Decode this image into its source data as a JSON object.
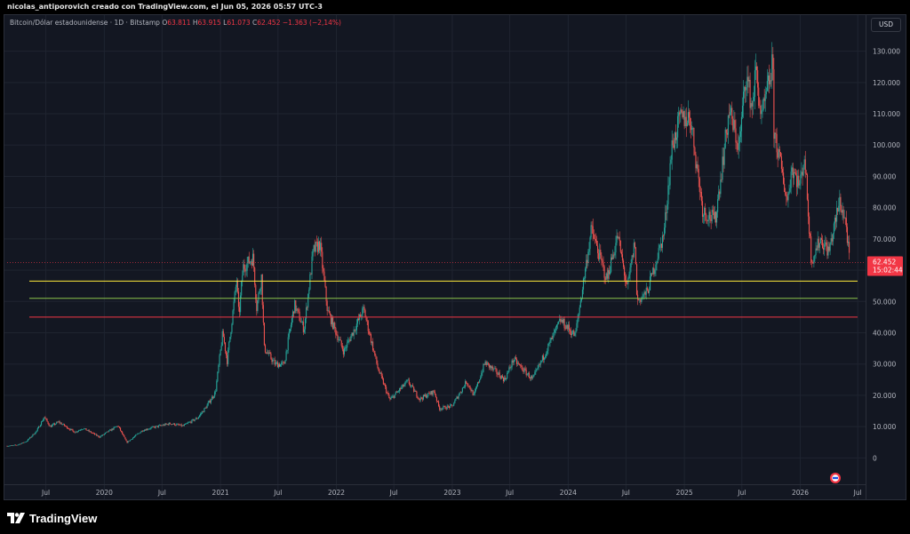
{
  "caption": "nicolas_antiporovich creado con TradingView.com, el Jun 05, 2026 05:57 UTC-3",
  "legend": {
    "symbol": "Bitcoin/Dólar estadounidense · 1D · Bitstamp",
    "o_key": "O",
    "o_val": "63.811",
    "h_key": "H",
    "h_val": "63.915",
    "l_key": "L",
    "l_val": "61.073",
    "c_key": "C",
    "c_val": "62.452",
    "change": "−1.363 (−2,14%)"
  },
  "currency_button": "USD",
  "brand": "TradingView",
  "colors": {
    "up": "#26a69a",
    "down": "#ef5350",
    "grid": "#1f2430",
    "background": "#131722",
    "axis_text": "#b2b5be",
    "yellow_line": "#ffeb3b",
    "green_line": "#8bc34a",
    "red_line": "#f23645",
    "price_label_bg": "#f23645"
  },
  "chart_data": {
    "type": "candlestick",
    "series_name": "BTC/USD",
    "x_range": [
      "2019-03-01",
      "2026-07-20"
    ],
    "y_range": [
      -7000,
      135000
    ],
    "y_ticks": [
      {
        "value": 130000,
        "label": "130.000"
      },
      {
        "value": 120000,
        "label": "120.000"
      },
      {
        "value": 110000,
        "label": "110.000"
      },
      {
        "value": 100000,
        "label": "100.000"
      },
      {
        "value": 90000,
        "label": "90.000"
      },
      {
        "value": 80000,
        "label": "80.000"
      },
      {
        "value": 70000,
        "label": "70.000"
      },
      {
        "value": 60000,
        "label": "60.000"
      },
      {
        "value": 50000,
        "label": "50.000"
      },
      {
        "value": 40000,
        "label": "40.000"
      },
      {
        "value": 30000,
        "label": "30.000"
      },
      {
        "value": 20000,
        "label": "20.000"
      },
      {
        "value": 10000,
        "label": "10.000"
      },
      {
        "value": 0,
        "label": "0"
      }
    ],
    "x_ticks": [
      {
        "date": "2019-07-01",
        "label": "Jul"
      },
      {
        "date": "2020-01-01",
        "label": "2020"
      },
      {
        "date": "2020-07-01",
        "label": "Jul"
      },
      {
        "date": "2021-01-01",
        "label": "2021"
      },
      {
        "date": "2021-07-01",
        "label": "Jul"
      },
      {
        "date": "2022-01-01",
        "label": "2022"
      },
      {
        "date": "2022-07-01",
        "label": "Jul"
      },
      {
        "date": "2023-01-01",
        "label": "2023"
      },
      {
        "date": "2023-07-01",
        "label": "Jul"
      },
      {
        "date": "2024-01-01",
        "label": "2024"
      },
      {
        "date": "2024-07-01",
        "label": "Jul"
      },
      {
        "date": "2025-01-01",
        "label": "2025"
      },
      {
        "date": "2025-07-01",
        "label": "Jul"
      },
      {
        "date": "2026-01-01",
        "label": "2026"
      },
      {
        "date": "2026-07-01",
        "label": "Jul"
      }
    ],
    "price_path": [
      [
        "2019-03-01",
        3800
      ],
      [
        "2019-04-01",
        4100
      ],
      [
        "2019-05-01",
        5300
      ],
      [
        "2019-06-01",
        8500
      ],
      [
        "2019-06-26",
        13000
      ],
      [
        "2019-07-15",
        10000
      ],
      [
        "2019-08-10",
        11500
      ],
      [
        "2019-09-30",
        8200
      ],
      [
        "2019-10-26",
        9500
      ],
      [
        "2019-12-17",
        6700
      ],
      [
        "2020-02-13",
        10300
      ],
      [
        "2020-03-12",
        4900
      ],
      [
        "2020-04-30",
        8800
      ],
      [
        "2020-06-01",
        9700
      ],
      [
        "2020-07-27",
        11000
      ],
      [
        "2020-09-05",
        10200
      ],
      [
        "2020-10-21",
        12800
      ],
      [
        "2020-11-15",
        16000
      ],
      [
        "2020-12-16",
        21000
      ],
      [
        "2021-01-08",
        40000
      ],
      [
        "2021-01-22",
        31000
      ],
      [
        "2021-02-21",
        57000
      ],
      [
        "2021-02-28",
        45000
      ],
      [
        "2021-03-13",
        61000
      ],
      [
        "2021-04-14",
        64000
      ],
      [
        "2021-04-25",
        48000
      ],
      [
        "2021-05-10",
        58000
      ],
      [
        "2021-05-19",
        35000
      ],
      [
        "2021-06-22",
        30000
      ],
      [
        "2021-07-20",
        29800
      ],
      [
        "2021-08-22",
        49000
      ],
      [
        "2021-09-21",
        41000
      ],
      [
        "2021-10-20",
        66000
      ],
      [
        "2021-11-10",
        68500
      ],
      [
        "2021-12-04",
        47000
      ],
      [
        "2022-01-24",
        34000
      ],
      [
        "2022-03-28",
        47500
      ],
      [
        "2022-05-12",
        28500
      ],
      [
        "2022-06-18",
        18500
      ],
      [
        "2022-08-14",
        24500
      ],
      [
        "2022-09-20",
        18800
      ],
      [
        "2022-11-05",
        21300
      ],
      [
        "2022-11-21",
        15800
      ],
      [
        "2022-12-31",
        16500
      ],
      [
        "2023-02-15",
        24500
      ],
      [
        "2023-03-10",
        20000
      ],
      [
        "2023-04-14",
        30500
      ],
      [
        "2023-06-15",
        25000
      ],
      [
        "2023-07-13",
        31500
      ],
      [
        "2023-09-11",
        25000
      ],
      [
        "2023-10-25",
        34500
      ],
      [
        "2023-12-08",
        44000
      ],
      [
        "2024-01-23",
        39000
      ],
      [
        "2024-03-14",
        73000
      ],
      [
        "2024-05-01",
        57000
      ],
      [
        "2024-06-05",
        71000
      ],
      [
        "2024-07-05",
        54000
      ],
      [
        "2024-07-29",
        69000
      ],
      [
        "2024-08-05",
        50000
      ],
      [
        "2024-09-06",
        53000
      ],
      [
        "2024-10-29",
        72000
      ],
      [
        "2024-11-22",
        99000
      ],
      [
        "2024-12-17",
        108000
      ],
      [
        "2025-01-20",
        109000
      ],
      [
        "2025-02-28",
        79000
      ],
      [
        "2025-04-08",
        76000
      ],
      [
        "2025-05-22",
        111000
      ],
      [
        "2025-06-22",
        99000
      ],
      [
        "2025-07-14",
        123000
      ],
      [
        "2025-08-02",
        112000
      ],
      [
        "2025-08-14",
        124000
      ],
      [
        "2025-09-01",
        108000
      ],
      [
        "2025-10-06",
        126000
      ],
      [
        "2025-10-10",
        105000
      ],
      [
        "2025-11-21",
        82000
      ],
      [
        "2025-12-05",
        93000
      ],
      [
        "2025-12-31",
        87000
      ],
      [
        "2026-01-14",
        97000
      ],
      [
        "2026-02-05",
        63000
      ],
      [
        "2026-03-05",
        70000
      ],
      [
        "2026-04-01",
        66000
      ],
      [
        "2026-05-05",
        82000
      ],
      [
        "2026-05-25",
        75000
      ],
      [
        "2026-06-05",
        62452
      ]
    ],
    "horizontal_lines": [
      {
        "value": 56500,
        "color": "#ffeb3b"
      },
      {
        "value": 51000,
        "color": "#8bc34a"
      },
      {
        "value": 45000,
        "color": "#f23645"
      }
    ],
    "last_price": {
      "value": 62452,
      "label": "62.452",
      "countdown": "15:02:44"
    }
  }
}
